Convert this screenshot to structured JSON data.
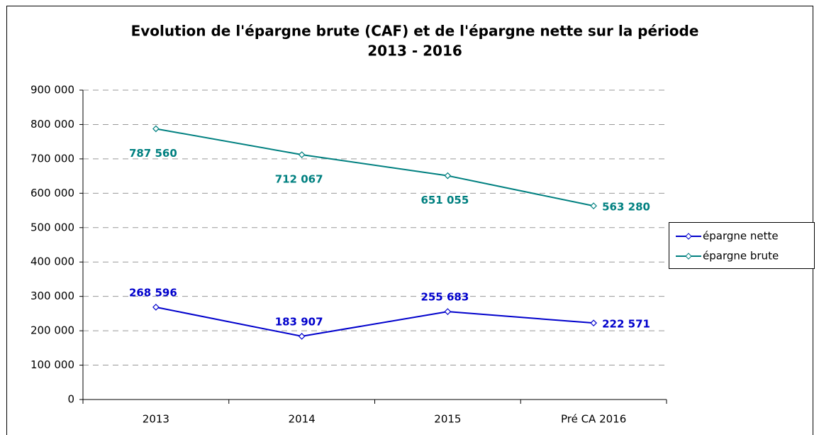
{
  "chart_data": {
    "type": "line",
    "title": [
      "Evolution de l'épargne brute (CAF) et de l'épargne nette sur la période",
      "2013 - 2016"
    ],
    "categories": [
      "2013",
      "2014",
      "2015",
      "Pré CA 2016"
    ],
    "series": [
      {
        "name": "épargne nette",
        "color": "#0000cc",
        "values": [
          268596,
          183907,
          255683,
          222571
        ],
        "value_labels": [
          "268 596",
          "183 907",
          "255 683",
          "222 571"
        ]
      },
      {
        "name": "épargne brute",
        "color": "#008080",
        "values": [
          787560,
          712067,
          651055,
          563280
        ],
        "value_labels": [
          "787 560",
          "712 067",
          "651 055",
          "563 280"
        ]
      }
    ],
    "ylim": [
      0,
      900000
    ],
    "yticks": [
      0,
      {
        "value": 100000,
        "label": "100 000"
      },
      {
        "value": 200000,
        "label": "200 000"
      },
      {
        "value": 300000,
        "label": "300 000"
      },
      {
        "value": 400000,
        "label": "400 000"
      },
      {
        "value": 500000,
        "label": "500 000"
      },
      {
        "value": 600000,
        "label": "600 000"
      },
      {
        "value": 700000,
        "label": "700 000"
      },
      {
        "value": 800000,
        "label": "800 000"
      },
      {
        "value": 900000,
        "label": "900 000"
      }
    ],
    "grid": true,
    "legend": "right"
  }
}
